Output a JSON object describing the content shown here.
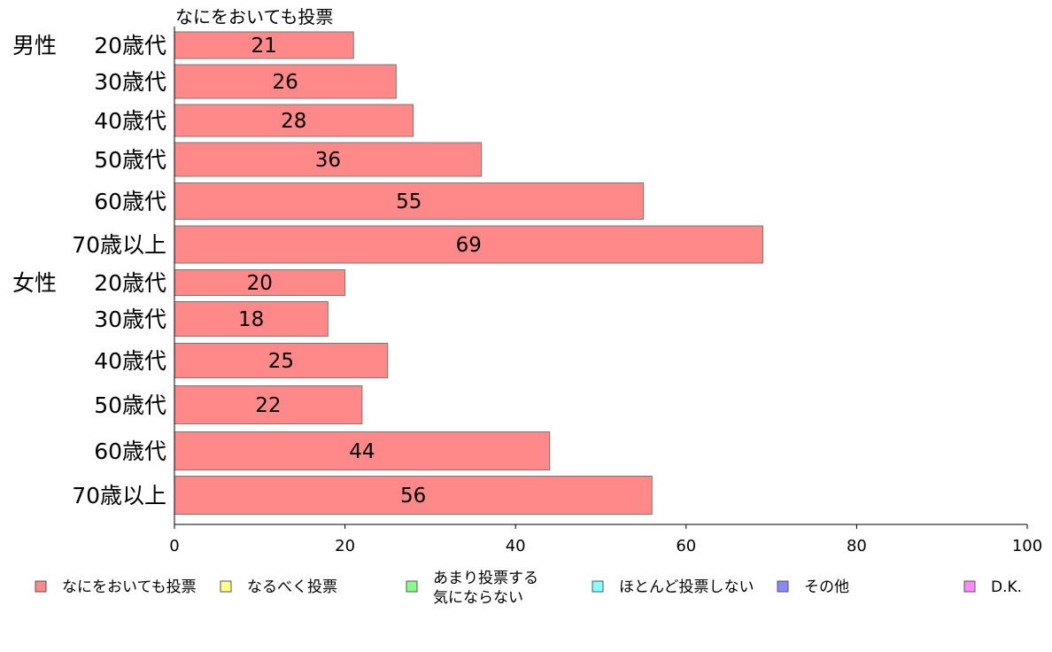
{
  "chart_data": {
    "type": "bar",
    "orientation": "horizontal",
    "series_title": "なにをおいても投票",
    "groups": [
      "男性",
      "女性"
    ],
    "categories": [
      "20歳代",
      "30歳代",
      "40歳代",
      "50歳代",
      "60歳代",
      "70歳以上",
      "20歳代",
      "30歳代",
      "40歳代",
      "50歳代",
      "60歳代",
      "70歳以上"
    ],
    "series": [
      {
        "name": "なにをおいても投票",
        "values": [
          21,
          26,
          28,
          36,
          55,
          69,
          20,
          18,
          25,
          22,
          44,
          56
        ]
      }
    ],
    "xlim": [
      0,
      100
    ],
    "xticks": [
      0,
      20,
      40,
      60,
      80,
      100
    ],
    "grid": false,
    "legend_position": "bottom",
    "legend": [
      {
        "label": "なにをおいても投票",
        "color": "#ff8888"
      },
      {
        "label": "なるべく投票",
        "color": "#ffff88"
      },
      {
        "label": "あまり投票する\n気にならない",
        "color": "#88ff88"
      },
      {
        "label": "ほとんど投票しない",
        "color": "#88ffff"
      },
      {
        "label": "その他",
        "color": "#8888ff"
      },
      {
        "label": "D.K.",
        "color": "#ff88ff"
      }
    ],
    "bar_color": "#ff8888"
  }
}
